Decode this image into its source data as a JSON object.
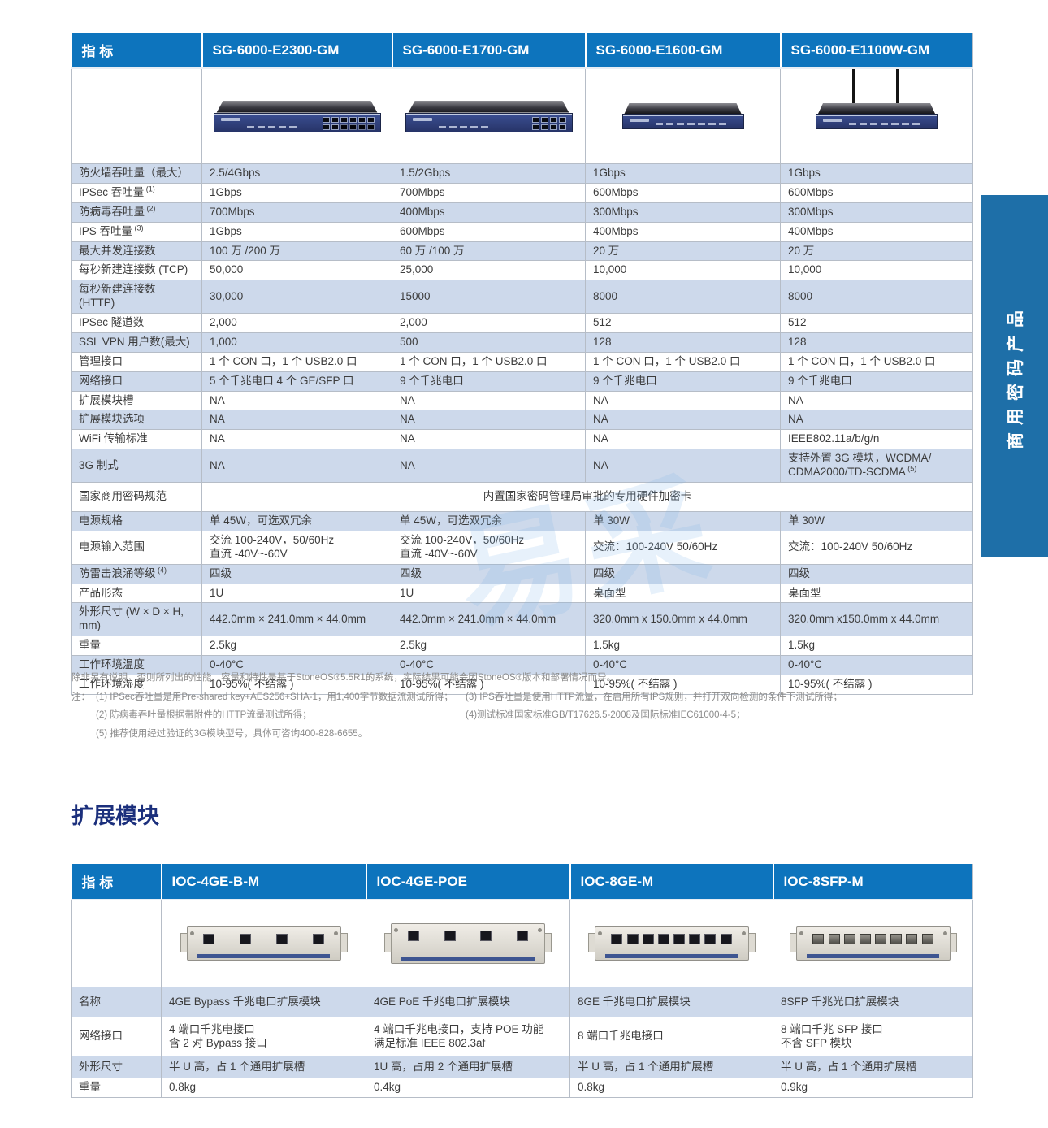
{
  "colors": {
    "header_blue": "#0d74bd",
    "row_alt_blue": "#cdd9eb",
    "side_tab_blue": "#1e6fa8",
    "section_title_navy": "#1b2f7c",
    "device_front_navy": "#2f3f7d"
  },
  "side_tab": {
    "label": "商用密码产品"
  },
  "watermark_text": "易采",
  "main_table": {
    "header": [
      "指 标",
      "SG-6000-E2300-GM",
      "SG-6000-E1700-GM",
      "SG-6000-E1600-GM",
      "SG-6000-E1100W-GM"
    ],
    "product_images": [
      {
        "model": "SG-6000-E2300-GM",
        "kind": "rack",
        "rj45_ports": 8,
        "sfp_ports": 4,
        "antennas": 0
      },
      {
        "model": "SG-6000-E1700-GM",
        "kind": "rack",
        "rj45_ports": 8,
        "sfp_ports": 0,
        "antennas": 0
      },
      {
        "model": "SG-6000-E1600-GM",
        "kind": "desktop",
        "rj45_ports": 0,
        "sfp_ports": 0,
        "antennas": 0
      },
      {
        "model": "SG-6000-E1100W-GM",
        "kind": "desktop",
        "rj45_ports": 0,
        "sfp_ports": 0,
        "antennas": 2
      }
    ],
    "rows": [
      {
        "label": "防火墙吞吐量（最大）",
        "values": [
          "2.5/4Gbps",
          "1.5/2Gbps",
          "1Gbps",
          "1Gbps"
        ]
      },
      {
        "label": "IPSec 吞吐量",
        "label_sup": "(1)",
        "values": [
          "1Gbps",
          "700Mbps",
          "600Mbps",
          "600Mbps"
        ]
      },
      {
        "label": "防病毒吞吐量",
        "label_sup": "(2)",
        "values": [
          "700Mbps",
          "400Mbps",
          "300Mbps",
          "300Mbps"
        ]
      },
      {
        "label": "IPS 吞吐量",
        "label_sup": "(3)",
        "values": [
          "1Gbps",
          "600Mbps",
          "400Mbps",
          "400Mbps"
        ]
      },
      {
        "label": "最大并发连接数",
        "values": [
          "100 万 /200 万",
          "60 万 /100 万",
          "20 万",
          "20 万"
        ]
      },
      {
        "label": "每秒新建连接数 (TCP)",
        "values": [
          "50,000",
          "25,000",
          "10,000",
          "10,000"
        ]
      },
      {
        "label_lines": [
          "每秒新建连接数",
          "(HTTP)"
        ],
        "values": [
          "30,000",
          "15000",
          "8000",
          "8000"
        ]
      },
      {
        "label": "IPSec 隧道数",
        "values": [
          "2,000",
          "2,000",
          "512",
          "512"
        ]
      },
      {
        "label": "SSL VPN 用户数(最大)",
        "values": [
          "1,000",
          "500",
          "128",
          "128"
        ]
      },
      {
        "label": "管理接口",
        "values": [
          "1 个 CON 口，1 个 USB2.0 口",
          "1 个 CON 口，1 个 USB2.0 口",
          "1 个 CON 口，1 个 USB2.0 口",
          "1 个 CON 口，1 个 USB2.0 口"
        ]
      },
      {
        "label": "网络接口",
        "values": [
          "5 个千兆电口 4 个 GE/SFP 口",
          "9 个千兆电口",
          "9 个千兆电口",
          "9 个千兆电口"
        ]
      },
      {
        "label": "扩展模块槽",
        "values": [
          "NA",
          "NA",
          "NA",
          "NA"
        ]
      },
      {
        "label": "扩展模块选项",
        "values": [
          "NA",
          "NA",
          "NA",
          "NA"
        ]
      },
      {
        "label": "WiFi 传输标准",
        "values": [
          "NA",
          "NA",
          "NA",
          "IEEE802.11a/b/g/n"
        ]
      },
      {
        "label": "3G 制式",
        "values": [
          "NA",
          "NA",
          "NA",
          {
            "lines": [
              "支持外置 3G 模块，WCDMA/",
              "CDMA2000/TD-SCDMA"
            ],
            "sup": "(5)"
          }
        ]
      },
      {
        "label": "国家商用密码规范",
        "span_value": "内置国家密码管理局审批的专用硬件加密卡"
      },
      {
        "label": "电源规格",
        "values": [
          "单 45W，可选双冗余",
          "单 45W，可选双冗余",
          "单 30W",
          "单 30W"
        ]
      },
      {
        "label": "电源输入范围",
        "values": [
          {
            "lines": [
              "交流 100-240V，50/60Hz",
              "直流 -40V~-60V"
            ]
          },
          {
            "lines": [
              "交流 100-240V，50/60Hz",
              "直流 -40V~-60V"
            ]
          },
          "交流：100-240V 50/60Hz",
          "交流：100-240V 50/60Hz"
        ]
      },
      {
        "label": "防雷击浪涌等级",
        "label_sup": "(4)",
        "values": [
          "四级",
          "四级",
          "四级",
          "四级"
        ]
      },
      {
        "label": "产品形态",
        "values": [
          "1U",
          "1U",
          "桌面型",
          "桌面型"
        ]
      },
      {
        "label": "外形尺寸 (W × D × H, mm)",
        "values": [
          "442.0mm × 241.0mm × 44.0mm",
          "442.0mm × 241.0mm × 44.0mm",
          "320.0mm x 150.0mm x 44.0mm",
          "320.0mm x150.0mm x 44.0mm"
        ]
      },
      {
        "label": "重量",
        "values": [
          "2.5kg",
          "2.5kg",
          "1.5kg",
          "1.5kg"
        ]
      },
      {
        "label": "工作环境温度",
        "values": [
          "0-40°C",
          "0-40°C",
          "0-40°C",
          "0-40°C"
        ]
      },
      {
        "label": "工作环境湿度",
        "values": [
          "10-95%( 不结露 )",
          "10-95%( 不结露 )",
          "10-95%( 不结露 )",
          "10-95%( 不结露 )"
        ]
      }
    ]
  },
  "footnotes": {
    "intro": "除非另有说明，否则所列出的性能、容量和特性是基于StoneOS®5.5R1的系统，实际结果可能会因StoneOS®版本和部署情况而异。",
    "note_label": "注：",
    "left": [
      "(1)  IPSec吞吐量是用Pre-shared key+AES256+SHA-1，用1,400字节数据流测试所得；",
      "(2)  防病毒吞吐量根据带附件的HTTP流量测试所得；",
      "(5)  推荐使用经过验证的3G模块型号，具体可咨询400-828-6655。"
    ],
    "right": [
      "(3) IPS吞吐量是使用HTTP流量，在启用所有IPS规则，并打开双向检测的条件下测试所得；",
      "(4)测试标准国家标准GB/T17626.5-2008及国际标准IEC61000-4-5；",
      ""
    ]
  },
  "section2_title": "扩展模块",
  "module_table": {
    "header": [
      "指 标",
      "IOC-4GE-B-M",
      "IOC-4GE-POE",
      "IOC-8GE-M",
      "IOC-8SFP-M"
    ],
    "module_images": [
      {
        "model": "IOC-4GE-B-M",
        "ports": 4,
        "style": "rj45"
      },
      {
        "model": "IOC-4GE-POE",
        "ports": 4,
        "style": "sfp"
      },
      {
        "model": "IOC-8GE-M",
        "ports": 8,
        "style": "rj45"
      },
      {
        "model": "IOC-8SFP-M",
        "ports": 8,
        "style": "cage"
      }
    ],
    "rows": [
      {
        "label": "名称",
        "values": [
          "4GE Bypass 千兆电口扩展模块",
          "4GE PoE 千兆电口扩展模块",
          "8GE 千兆电口扩展模块",
          "8SFP 千兆光口扩展模块"
        ]
      },
      {
        "label": "网络接口",
        "values": [
          {
            "lines": [
              "4 端口千兆电接口",
              "含 2 对 Bypass 接口"
            ]
          },
          {
            "lines": [
              "4 端口千兆电接口，支持 POE 功能",
              "满足标准 IEEE 802.3af"
            ]
          },
          "8 端口千兆电接口",
          {
            "lines": [
              "8 端口千兆 SFP 接口",
              "不含 SFP 模块"
            ]
          }
        ]
      },
      {
        "label": "外形尺寸",
        "values": [
          "半 U 高，占 1 个通用扩展槽",
          "1U 高，占用 2 个通用扩展槽",
          "半 U 高，占 1 个通用扩展槽",
          "半 U 高，占 1 个通用扩展槽"
        ]
      },
      {
        "label": "重量",
        "values": [
          "0.8kg",
          "0.4kg",
          "0.8kg",
          "0.9kg"
        ]
      }
    ]
  }
}
